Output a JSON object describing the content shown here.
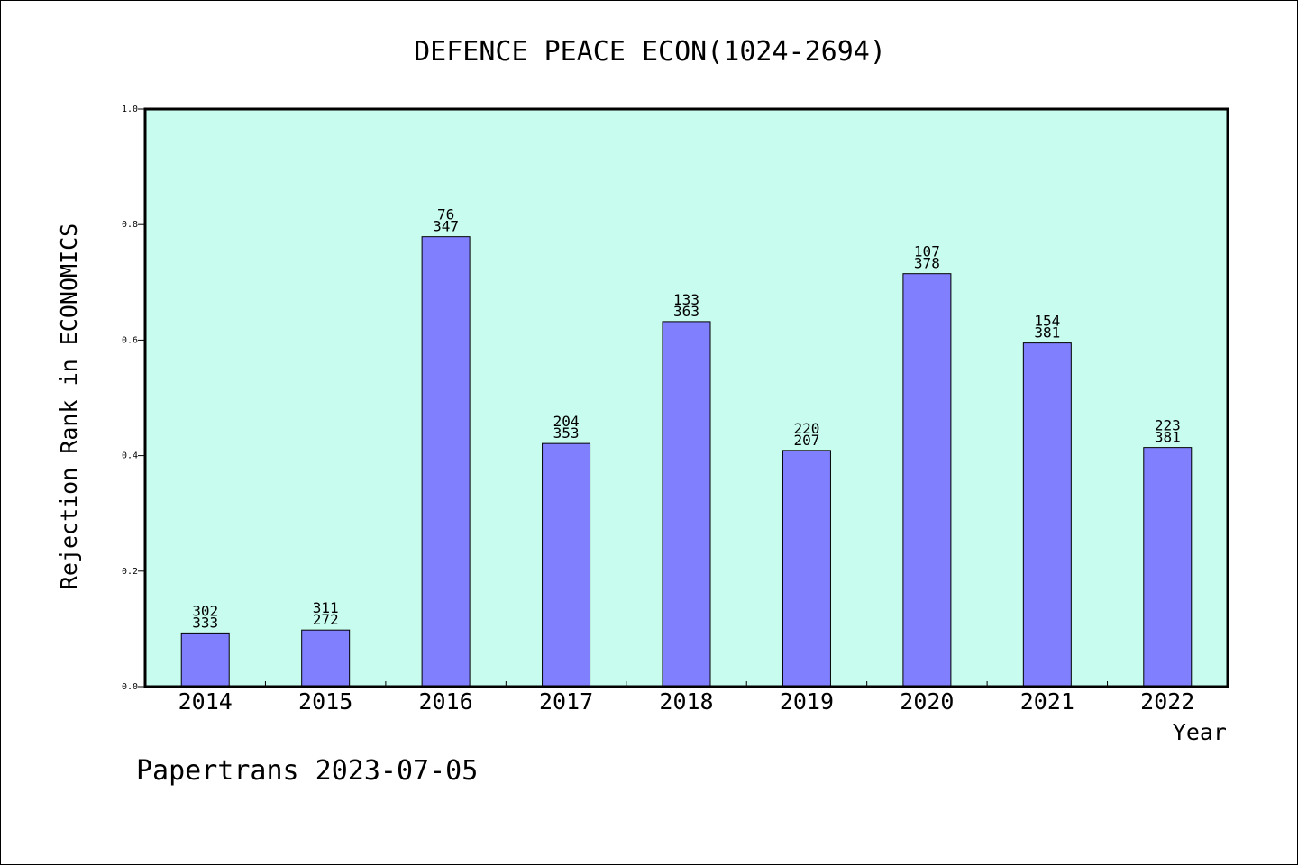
{
  "chart_data": {
    "type": "bar",
    "title": "DEFENCE PEACE ECON(1024-2694)",
    "xlabel": "Year",
    "ylabel": "Rejection Rank in ECONOMICS",
    "ylim": [
      0,
      1.0
    ],
    "yticks": [
      "0.0",
      "0.2",
      "0.4",
      "0.6",
      "0.8",
      "1.0"
    ],
    "categories": [
      "2014",
      "2015",
      "2016",
      "2017",
      "2018",
      "2019",
      "2020",
      "2021",
      "2022"
    ],
    "values": [
      0.093,
      0.098,
      0.779,
      0.421,
      0.632,
      0.409,
      0.715,
      0.595,
      0.414
    ],
    "bar_labels_top": [
      "302",
      "311",
      "76",
      "204",
      "133",
      "220",
      "107",
      "154",
      "223"
    ],
    "bar_labels_bottom": [
      "333",
      "272",
      "347",
      "353",
      "363",
      "207",
      "378",
      "381",
      "381"
    ],
    "grid": false,
    "colors": {
      "plot_background": "#c8fcee",
      "bar_fill": "#8080ff",
      "bar_stroke": "#000000"
    }
  },
  "footer": {
    "text": "Papertrans 2023-07-05"
  }
}
